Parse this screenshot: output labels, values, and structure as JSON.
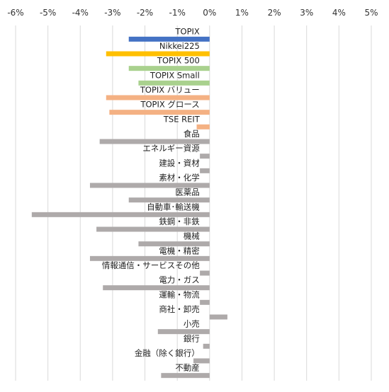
{
  "chart_data": {
    "type": "bar",
    "orientation": "horizontal",
    "title": "",
    "xlabel": "",
    "ylabel": "",
    "xlim": [
      -6,
      5
    ],
    "x_ticks": [
      "-6%",
      "-5%",
      "-4%",
      "-3%",
      "-2%",
      "-1%",
      "0%",
      "1%",
      "2%",
      "3%",
      "4%",
      "5%"
    ],
    "grid": true,
    "legend": "none",
    "categories": [
      "TOPIX",
      "Nikkei225",
      "TOPIX 500",
      "TOPIX Small",
      "TOPIX バリュー",
      "TOPIX グロース",
      "TSE REIT",
      "食品",
      "エネルギー資源",
      "建設・資材",
      "素材・化学",
      "医薬品",
      "自動車･輸送機",
      "鉄鋼・非鉄",
      "機械",
      "電機・精密",
      "情報通信・サービスその他",
      "電力・ガス",
      "運輸・物流",
      "商社・卸売",
      "小売",
      "銀行",
      "金融（除く銀行）",
      "不動産"
    ],
    "values": [
      -2.5,
      -3.2,
      -2.5,
      -2.2,
      -3.2,
      -3.1,
      -0.4,
      -3.4,
      -0.3,
      -0.3,
      -3.7,
      -2.5,
      -5.5,
      -3.5,
      -2.2,
      -3.7,
      -0.3,
      -3.3,
      -0.3,
      0.55,
      -1.6,
      -0.2,
      -0.5,
      -1.5
    ],
    "colors": [
      "#4472C4",
      "#FFC000",
      "#A9D18E",
      "#A9D18E",
      "#F4B183",
      "#F4B183",
      "#F4B183",
      "#AEAAAA",
      "#AEAAAA",
      "#AEAAAA",
      "#AEAAAA",
      "#AEAAAA",
      "#AEAAAA",
      "#AEAAAA",
      "#AEAAAA",
      "#AEAAAA",
      "#AEAAAA",
      "#AEAAAA",
      "#AEAAAA",
      "#AEAAAA",
      "#AEAAAA",
      "#AEAAAA",
      "#AEAAAA",
      "#AEAAAA"
    ],
    "grid_color": "#D9D9D9"
  }
}
